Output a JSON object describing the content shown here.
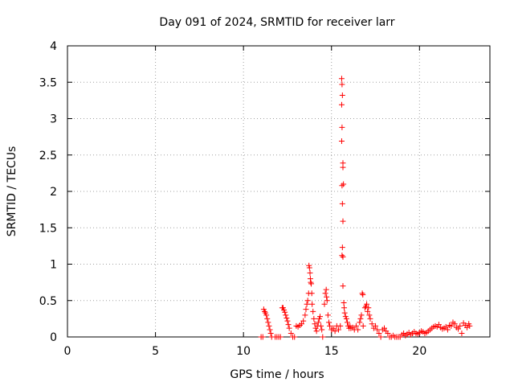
{
  "chart_data": {
    "type": "scatter",
    "title": "Day 091 of 2024, SRMTID for receiver larr",
    "xlabel": "GPS time / hours",
    "ylabel": "SRMTID / TECUs",
    "xlim": [
      0,
      24
    ],
    "ylim": [
      0,
      4
    ],
    "xticks": [
      0,
      5,
      10,
      15,
      20
    ],
    "xtick_labels": [
      "0",
      "5",
      "10",
      "15",
      "20"
    ],
    "yticks": [
      0,
      0.5,
      1,
      1.5,
      2,
      2.5,
      3,
      3.5,
      4
    ],
    "ytick_labels": [
      "0",
      "0.5",
      "1",
      "1.5",
      "2",
      "2.5",
      "3",
      "3.5",
      "4"
    ],
    "grid": true,
    "marker": "+",
    "color": "#ff0000",
    "series": [
      {
        "name": "SRMTID",
        "points": [
          [
            11.0,
            0.0
          ],
          [
            11.1,
            0.0
          ],
          [
            11.15,
            0.38
          ],
          [
            11.2,
            0.35
          ],
          [
            11.25,
            0.33
          ],
          [
            11.3,
            0.3
          ],
          [
            11.35,
            0.25
          ],
          [
            11.4,
            0.2
          ],
          [
            11.45,
            0.15
          ],
          [
            11.5,
            0.1
          ],
          [
            11.55,
            0.05
          ],
          [
            11.6,
            0.0
          ],
          [
            11.8,
            0.0
          ],
          [
            11.9,
            0.0
          ],
          [
            12.0,
            0.0
          ],
          [
            12.1,
            0.0
          ],
          [
            12.2,
            0.4
          ],
          [
            12.25,
            0.4
          ],
          [
            12.3,
            0.37
          ],
          [
            12.35,
            0.34
          ],
          [
            12.4,
            0.3
          ],
          [
            12.45,
            0.26
          ],
          [
            12.5,
            0.22
          ],
          [
            12.55,
            0.17
          ],
          [
            12.6,
            0.12
          ],
          [
            12.7,
            0.05
          ],
          [
            12.8,
            0.0
          ],
          [
            12.9,
            0.0
          ],
          [
            13.0,
            0.15
          ],
          [
            13.1,
            0.14
          ],
          [
            13.2,
            0.16
          ],
          [
            13.3,
            0.18
          ],
          [
            13.4,
            0.22
          ],
          [
            13.5,
            0.3
          ],
          [
            13.55,
            0.38
          ],
          [
            13.6,
            0.45
          ],
          [
            13.65,
            0.5
          ],
          [
            13.7,
            0.6
          ],
          [
            13.72,
            0.98
          ],
          [
            13.75,
            0.95
          ],
          [
            13.78,
            0.88
          ],
          [
            13.8,
            0.8
          ],
          [
            13.82,
            0.75
          ],
          [
            13.85,
            0.73
          ],
          [
            13.88,
            0.6
          ],
          [
            13.9,
            0.45
          ],
          [
            13.95,
            0.35
          ],
          [
            14.0,
            0.25
          ],
          [
            14.05,
            0.18
          ],
          [
            14.1,
            0.12
          ],
          [
            14.15,
            0.08
          ],
          [
            14.2,
            0.15
          ],
          [
            14.25,
            0.2
          ],
          [
            14.3,
            0.25
          ],
          [
            14.35,
            0.28
          ],
          [
            14.4,
            0.15
          ],
          [
            14.45,
            0.1
          ],
          [
            14.5,
            0.0
          ],
          [
            14.6,
            0.45
          ],
          [
            14.65,
            0.6
          ],
          [
            14.7,
            0.65
          ],
          [
            14.72,
            0.55
          ],
          [
            14.75,
            0.5
          ],
          [
            14.8,
            0.3
          ],
          [
            14.85,
            0.2
          ],
          [
            14.9,
            0.15
          ],
          [
            15.0,
            0.1
          ],
          [
            15.1,
            0.12
          ],
          [
            15.2,
            0.08
          ],
          [
            15.3,
            0.15
          ],
          [
            15.4,
            0.1
          ],
          [
            15.5,
            0.15
          ],
          [
            15.58,
            3.55
          ],
          [
            15.6,
            3.47
          ],
          [
            15.62,
            3.32
          ],
          [
            15.58,
            3.19
          ],
          [
            15.6,
            2.88
          ],
          [
            15.58,
            2.69
          ],
          [
            15.65,
            2.39
          ],
          [
            15.65,
            2.33
          ],
          [
            15.6,
            2.08
          ],
          [
            15.68,
            2.1
          ],
          [
            15.62,
            1.83
          ],
          [
            15.65,
            1.59
          ],
          [
            15.62,
            1.23
          ],
          [
            15.6,
            1.12
          ],
          [
            15.65,
            1.1
          ],
          [
            15.65,
            0.7
          ],
          [
            15.7,
            0.47
          ],
          [
            15.72,
            0.4
          ],
          [
            15.75,
            0.33
          ],
          [
            15.8,
            0.28
          ],
          [
            15.85,
            0.25
          ],
          [
            15.9,
            0.2
          ],
          [
            15.95,
            0.15
          ],
          [
            16.0,
            0.12
          ],
          [
            16.05,
            0.15
          ],
          [
            16.1,
            0.12
          ],
          [
            16.2,
            0.13
          ],
          [
            16.3,
            0.1
          ],
          [
            16.4,
            0.15
          ],
          [
            16.5,
            0.1
          ],
          [
            16.6,
            0.2
          ],
          [
            16.65,
            0.25
          ],
          [
            16.7,
            0.3
          ],
          [
            16.75,
            0.6
          ],
          [
            16.78,
            0.58
          ],
          [
            16.8,
            0.15
          ],
          [
            16.9,
            0.4
          ],
          [
            16.95,
            0.42
          ],
          [
            17.0,
            0.45
          ],
          [
            17.05,
            0.35
          ],
          [
            17.1,
            0.4
          ],
          [
            17.15,
            0.3
          ],
          [
            17.2,
            0.25
          ],
          [
            17.3,
            0.18
          ],
          [
            17.4,
            0.12
          ],
          [
            17.5,
            0.15
          ],
          [
            17.6,
            0.1
          ],
          [
            17.7,
            0.05
          ],
          [
            17.8,
            0.0
          ],
          [
            17.9,
            0.1
          ],
          [
            18.0,
            0.12
          ],
          [
            18.1,
            0.08
          ],
          [
            18.2,
            0.05
          ],
          [
            18.3,
            0.0
          ],
          [
            18.4,
            0.0
          ],
          [
            18.5,
            0.02
          ],
          [
            18.6,
            0.0
          ],
          [
            18.7,
            0.0
          ],
          [
            18.8,
            0.0
          ],
          [
            18.9,
            0.0
          ],
          [
            19.0,
            0.03
          ],
          [
            19.1,
            0.05
          ],
          [
            19.2,
            0.02
          ],
          [
            19.3,
            0.04
          ],
          [
            19.4,
            0.06
          ],
          [
            19.5,
            0.03
          ],
          [
            19.6,
            0.05
          ],
          [
            19.7,
            0.07
          ],
          [
            19.8,
            0.05
          ],
          [
            19.9,
            0.04
          ],
          [
            20.0,
            0.06
          ],
          [
            20.1,
            0.08
          ],
          [
            20.2,
            0.07
          ],
          [
            20.3,
            0.05
          ],
          [
            20.4,
            0.06
          ],
          [
            20.5,
            0.08
          ],
          [
            20.6,
            0.1
          ],
          [
            20.7,
            0.12
          ],
          [
            20.8,
            0.14
          ],
          [
            20.9,
            0.15
          ],
          [
            21.0,
            0.14
          ],
          [
            21.1,
            0.17
          ],
          [
            21.2,
            0.13
          ],
          [
            21.3,
            0.11
          ],
          [
            21.4,
            0.12
          ],
          [
            21.5,
            0.14
          ],
          [
            21.6,
            0.1
          ],
          [
            21.7,
            0.16
          ],
          [
            21.8,
            0.15
          ],
          [
            21.9,
            0.2
          ],
          [
            22.0,
            0.18
          ],
          [
            22.1,
            0.13
          ],
          [
            22.2,
            0.11
          ],
          [
            22.3,
            0.15
          ],
          [
            22.4,
            0.05
          ],
          [
            22.5,
            0.19
          ],
          [
            22.6,
            0.16
          ],
          [
            22.7,
            0.13
          ],
          [
            22.8,
            0.18
          ],
          [
            22.85,
            0.15
          ]
        ]
      }
    ]
  }
}
